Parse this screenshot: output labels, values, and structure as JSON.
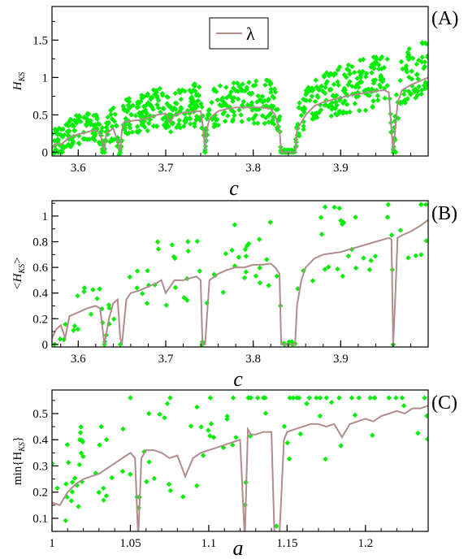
{
  "chart_data": [
    {
      "type": "scatter",
      "panel_label": "(A)",
      "xlabel": "c",
      "ylabel": "H",
      "ylabel_sub": "KS",
      "xlim": [
        3.57,
        4.0
      ],
      "ylim": [
        -0.05,
        1.95
      ],
      "xticks": [
        3.6,
        3.7,
        3.8,
        3.9
      ],
      "xtick_labels": [
        "3.6",
        "3.7",
        "3.8",
        "3.9"
      ],
      "yticks": [
        0,
        0.5,
        1,
        1.5
      ],
      "ytick_labels": [
        "0",
        "0.5",
        "1",
        "1.5"
      ],
      "legend": {
        "label": "λ",
        "placement": "top-center"
      },
      "colors": {
        "points": "#00ee00",
        "line": "#b08c8c"
      },
      "series": [
        {
          "name": "λ",
          "kind": "line",
          "x": [
            3.57,
            3.575,
            3.58,
            3.59,
            3.6,
            3.61,
            3.62,
            3.625,
            3.628,
            3.63,
            3.632,
            3.64,
            3.645,
            3.648,
            3.65,
            3.652,
            3.66,
            3.67,
            3.68,
            3.69,
            3.7,
            3.705,
            3.71,
            3.72,
            3.73,
            3.74,
            3.743,
            3.745,
            3.747,
            3.75,
            3.76,
            3.77,
            3.78,
            3.79,
            3.8,
            3.81,
            3.82,
            3.825,
            3.83,
            3.832,
            3.84,
            3.845,
            3.848,
            3.85,
            3.86,
            3.87,
            3.88,
            3.89,
            3.9,
            3.91,
            3.92,
            3.93,
            3.94,
            3.95,
            3.955,
            3.958,
            3.96,
            3.962,
            3.965,
            3.97,
            3.98,
            3.99,
            4.0
          ],
          "y": [
            0.05,
            0.12,
            0.1,
            0.2,
            0.24,
            0.27,
            0.3,
            0.25,
            0.1,
            0.02,
            0.25,
            0.32,
            0.15,
            0.02,
            0.3,
            0.4,
            0.42,
            0.43,
            0.46,
            0.5,
            0.52,
            0.4,
            0.5,
            0.53,
            0.54,
            0.55,
            0.3,
            0.02,
            0.3,
            0.45,
            0.55,
            0.58,
            0.6,
            0.6,
            0.6,
            0.6,
            0.58,
            0.5,
            0.3,
            0.0,
            0.0,
            0.0,
            0.0,
            0.3,
            0.5,
            0.62,
            0.67,
            0.7,
            0.73,
            0.76,
            0.78,
            0.8,
            0.82,
            0.83,
            0.8,
            0.3,
            0.02,
            0.25,
            0.65,
            0.83,
            0.9,
            0.95,
            1.0
          ]
        }
      ]
    },
    {
      "type": "scatter",
      "panel_label": "(B)",
      "xlabel": "c",
      "ylabel": "<H",
      "ylabel_sub": "KS",
      "ylabel_end": ">",
      "xlim": [
        3.57,
        4.0
      ],
      "ylim": [
        -0.02,
        1.12
      ],
      "xticks": [
        3.6,
        3.7,
        3.8,
        3.9
      ],
      "xtick_labels": [
        "3.6",
        "3.7",
        "3.8",
        "3.9"
      ],
      "yticks": [
        0,
        0.2,
        0.4,
        0.6,
        0.8,
        1
      ],
      "ytick_labels": [
        "0",
        "0.2",
        "0.4",
        "0.6",
        "0.8",
        "1"
      ],
      "colors": {
        "points": "#00ee00",
        "line": "#b08c8c"
      },
      "series": [
        {
          "kind": "line",
          "x": [
            3.57,
            3.575,
            3.58,
            3.585,
            3.59,
            3.6,
            3.61,
            3.62,
            3.625,
            3.63,
            3.635,
            3.64,
            3.645,
            3.648,
            3.65,
            3.655,
            3.66,
            3.67,
            3.68,
            3.69,
            3.695,
            3.7,
            3.71,
            3.72,
            3.73,
            3.735,
            3.74,
            3.742,
            3.745,
            3.75,
            3.76,
            3.77,
            3.78,
            3.79,
            3.8,
            3.81,
            3.82,
            3.825,
            3.83,
            3.832,
            3.84,
            3.845,
            3.848,
            3.85,
            3.855,
            3.86,
            3.87,
            3.88,
            3.89,
            3.9,
            3.91,
            3.92,
            3.93,
            3.94,
            3.95,
            3.955,
            3.958,
            3.96,
            3.962,
            3.965,
            3.97,
            3.98,
            3.99,
            4.0
          ],
          "y": [
            0.05,
            0.12,
            0.15,
            0.05,
            0.22,
            0.25,
            0.28,
            0.3,
            0.28,
            0.0,
            0.2,
            0.32,
            0.35,
            0.05,
            0.0,
            0.35,
            0.4,
            0.42,
            0.45,
            0.48,
            0.5,
            0.4,
            0.5,
            0.5,
            0.52,
            0.53,
            0.5,
            0.0,
            0.0,
            0.5,
            0.55,
            0.58,
            0.6,
            0.6,
            0.62,
            0.62,
            0.63,
            0.6,
            0.55,
            0.0,
            0.0,
            0.0,
            0.0,
            0.3,
            0.5,
            0.6,
            0.67,
            0.7,
            0.71,
            0.72,
            0.74,
            0.76,
            0.78,
            0.8,
            0.82,
            0.83,
            0.82,
            0.0,
            0.3,
            0.83,
            0.85,
            0.88,
            0.92,
            0.97
          ]
        }
      ]
    },
    {
      "type": "scatter",
      "panel_label": "(C)",
      "xlabel": "a",
      "ylabel": "min{H",
      "ylabel_sub": "KS",
      "ylabel_end": "}",
      "xlim": [
        1.0,
        1.24
      ],
      "ylim": [
        0.05,
        0.59
      ],
      "xticks": [
        1.0,
        1.05,
        1.1,
        1.15,
        1.2
      ],
      "xtick_labels": [
        "1",
        "1.05",
        "1.1",
        "1.15",
        "1.2"
      ],
      "yticks": [
        0.1,
        0.2,
        0.3,
        0.4,
        0.5
      ],
      "ytick_labels": [
        "0.1",
        "0.2",
        "0.3",
        "0.4",
        "0.5"
      ],
      "colors": {
        "points": "#00ee00",
        "line": "#b08c8c"
      },
      "series": [
        {
          "kind": "line",
          "x": [
            1.0,
            1.005,
            1.01,
            1.015,
            1.02,
            1.025,
            1.03,
            1.035,
            1.04,
            1.045,
            1.05,
            1.053,
            1.055,
            1.057,
            1.06,
            1.065,
            1.07,
            1.075,
            1.08,
            1.085,
            1.09,
            1.095,
            1.1,
            1.105,
            1.11,
            1.115,
            1.12,
            1.123,
            1.125,
            1.127,
            1.13,
            1.135,
            1.14,
            1.142,
            1.145,
            1.148,
            1.15,
            1.155,
            1.16,
            1.165,
            1.17,
            1.175,
            1.18,
            1.185,
            1.19,
            1.195,
            1.2,
            1.205,
            1.21,
            1.215,
            1.22,
            1.225,
            1.23,
            1.235,
            1.24
          ],
          "y": [
            0.16,
            0.15,
            0.2,
            0.23,
            0.25,
            0.26,
            0.27,
            0.29,
            0.31,
            0.33,
            0.35,
            0.33,
            0.02,
            0.33,
            0.36,
            0.36,
            0.35,
            0.33,
            0.34,
            0.26,
            0.33,
            0.35,
            0.36,
            0.37,
            0.38,
            0.39,
            0.4,
            0.02,
            0.44,
            0.42,
            0.42,
            0.43,
            0.43,
            0.02,
            0.02,
            0.4,
            0.43,
            0.44,
            0.45,
            0.46,
            0.46,
            0.45,
            0.46,
            0.41,
            0.46,
            0.47,
            0.48,
            0.47,
            0.49,
            0.5,
            0.51,
            0.5,
            0.52,
            0.52,
            0.53
          ]
        }
      ]
    }
  ]
}
